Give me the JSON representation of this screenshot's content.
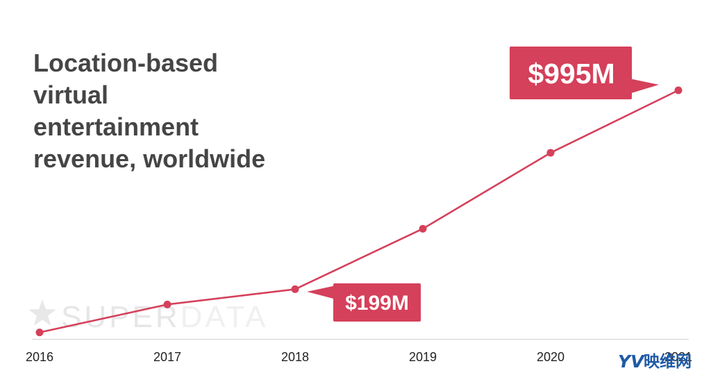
{
  "chart_data": {
    "type": "line",
    "title": "Location-based virtual entertainment revenue, worldwide",
    "xlabel": "",
    "ylabel": "",
    "categories": [
      "2016",
      "2017",
      "2018",
      "2019",
      "2020",
      "2021"
    ],
    "series": [
      {
        "values": [
          26,
          138,
          199,
          441,
          745,
          995
        ]
      }
    ],
    "ylim": [
      0,
      1000
    ],
    "grid": false,
    "legend": "none",
    "color": "#d5405a",
    "annotations": [
      {
        "category": "2021",
        "text": "$995M"
      },
      {
        "category": "2018",
        "text": "$199M"
      }
    ]
  },
  "watermark": {
    "icon": "star-icon",
    "part1": "SUPER",
    "part2": "DATA"
  },
  "logo": {
    "mark": "YV",
    "text": "映维网",
    "color": "#1f5aa6"
  }
}
